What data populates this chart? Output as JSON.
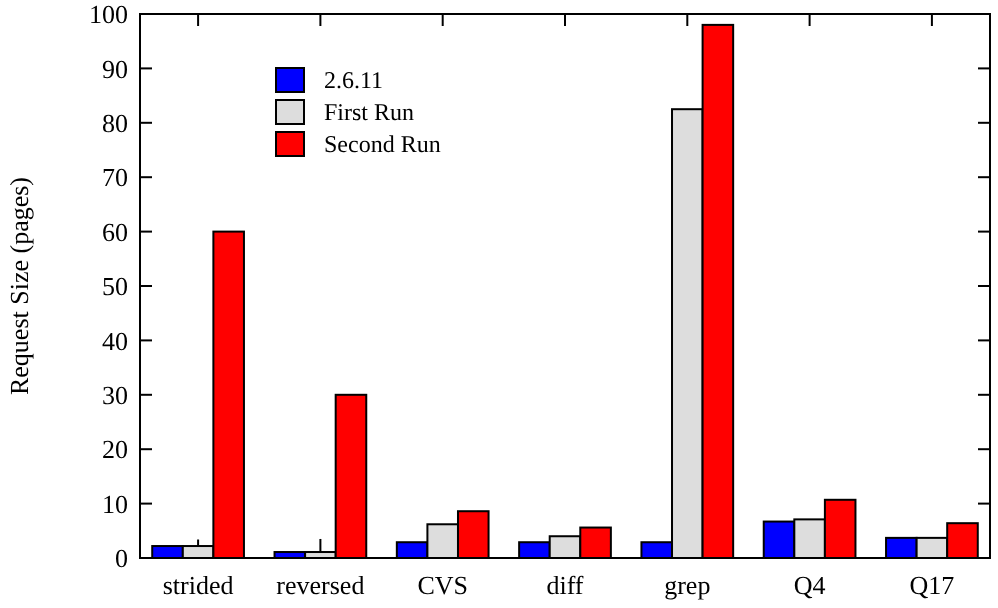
{
  "chart_data": {
    "type": "bar",
    "ylabel": "Request Size (pages)",
    "categories": [
      "strided",
      "reversed",
      "CVS",
      "diff",
      "grep",
      "Q4",
      "Q17"
    ],
    "series": [
      {
        "name": "2.6.11",
        "color": "#0000ff",
        "values": [
          2.2,
          1.1,
          2.9,
          2.9,
          2.9,
          6.7,
          3.7
        ]
      },
      {
        "name": "First Run",
        "color": "#dddddd",
        "values": [
          2.2,
          1.1,
          6.2,
          4.0,
          82.5,
          7.1,
          3.7
        ],
        "errors": [
          [
            2.2,
            3.4
          ],
          [
            1.1,
            3.5
          ],
          null,
          null,
          null,
          null,
          null
        ]
      },
      {
        "name": "Second Run",
        "color": "#ff0000",
        "values": [
          60,
          30,
          8.6,
          5.6,
          98,
          10.7,
          6.4
        ]
      }
    ],
    "ylim": [
      0,
      100
    ],
    "yticks": [
      0,
      10,
      20,
      30,
      40,
      50,
      60,
      70,
      80,
      90,
      100
    ],
    "legend": "top left"
  }
}
